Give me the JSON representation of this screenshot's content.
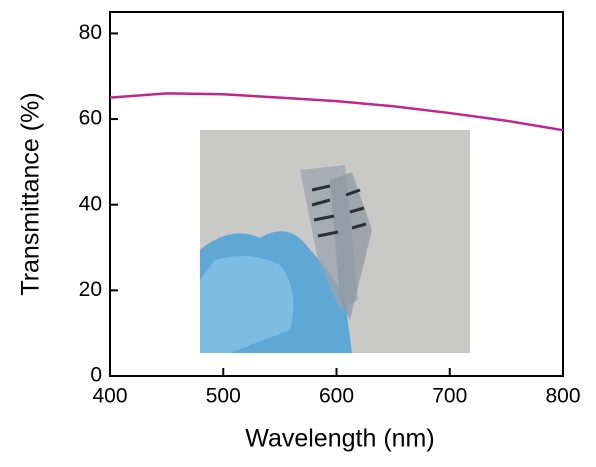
{
  "chart_data": {
    "type": "line",
    "x_label": "Wavelength (nm)",
    "y_label": "Transmittance (%)",
    "x": [
      400,
      450,
      500,
      550,
      600,
      650,
      700,
      750,
      800
    ],
    "series": [
      {
        "color": "#c0268f",
        "values": [
          65.0,
          66.0,
          65.8,
          65.0,
          64.2,
          63.0,
          61.4,
          59.6,
          57.4
        ]
      }
    ],
    "xlim": [
      400,
      800
    ],
    "xticks": [
      400,
      500,
      600,
      700,
      800
    ],
    "ylim": [
      0,
      85
    ],
    "yticks": [
      0,
      20,
      40,
      60,
      80
    ]
  }
}
